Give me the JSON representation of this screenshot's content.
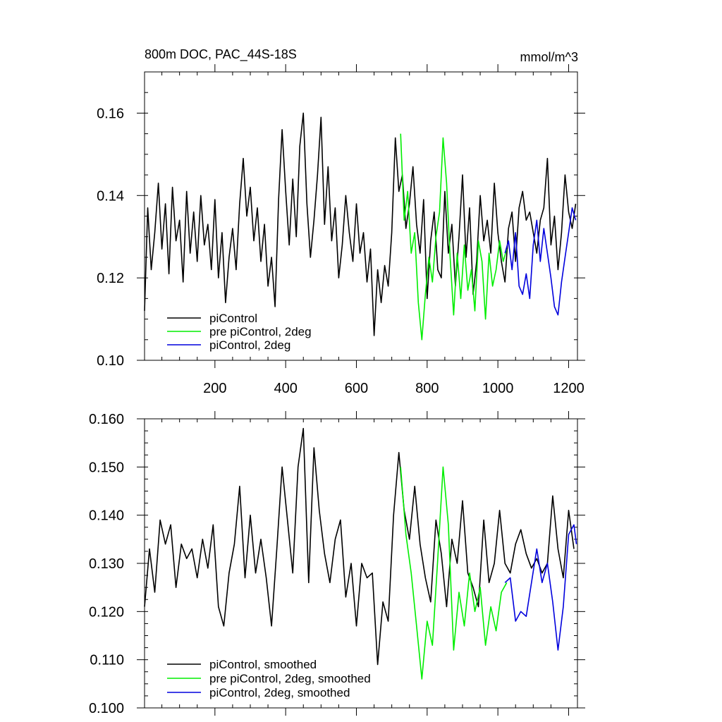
{
  "chart_data": [
    {
      "type": "line",
      "title": "800m DOC, PAC_44S-18S",
      "units_label": "mmol/m^3",
      "xlabel": "",
      "ylabel": "",
      "xlim": [
        1,
        1225
      ],
      "ylim": [
        0.1,
        0.17
      ],
      "x_ticks": [
        200,
        400,
        600,
        800,
        1000,
        1200
      ],
      "x_tick_labels": [
        "200",
        "400",
        "600",
        "800",
        "1000",
        "1200"
      ],
      "y_ticks": [
        0.1,
        0.12,
        0.14,
        0.16
      ],
      "y_tick_labels": [
        "0.10",
        "0.12",
        "0.14",
        "0.16"
      ],
      "legend_position": "bottom-left",
      "series": [
        {
          "name": "piControl",
          "color": "#000000",
          "x": [
            1,
            10,
            20,
            30,
            40,
            50,
            60,
            70,
            80,
            90,
            100,
            110,
            120,
            130,
            140,
            150,
            160,
            170,
            180,
            190,
            200,
            210,
            220,
            230,
            240,
            250,
            260,
            270,
            280,
            290,
            300,
            310,
            320,
            330,
            340,
            350,
            360,
            370,
            380,
            390,
            400,
            410,
            420,
            430,
            440,
            450,
            460,
            470,
            480,
            490,
            500,
            510,
            520,
            530,
            540,
            550,
            560,
            570,
            580,
            590,
            600,
            610,
            620,
            630,
            640,
            650,
            660,
            670,
            680,
            690,
            700,
            710,
            720,
            730,
            740,
            750,
            760,
            770,
            780,
            790,
            800,
            810,
            820,
            830,
            840,
            850,
            860,
            870,
            880,
            890,
            900,
            910,
            920,
            930,
            940,
            950,
            960,
            970,
            980,
            990,
            1000,
            1010,
            1020,
            1030,
            1040,
            1050,
            1060,
            1070,
            1080,
            1090,
            1100,
            1110,
            1120,
            1130,
            1140,
            1150,
            1160,
            1170,
            1180,
            1190,
            1200,
            1210,
            1220
          ],
          "values": [
            0.112,
            0.137,
            0.122,
            0.131,
            0.143,
            0.127,
            0.138,
            0.121,
            0.142,
            0.129,
            0.134,
            0.119,
            0.141,
            0.126,
            0.136,
            0.124,
            0.14,
            0.128,
            0.133,
            0.122,
            0.139,
            0.12,
            0.131,
            0.114,
            0.125,
            0.132,
            0.122,
            0.138,
            0.149,
            0.135,
            0.142,
            0.129,
            0.137,
            0.124,
            0.133,
            0.118,
            0.125,
            0.113,
            0.139,
            0.156,
            0.141,
            0.128,
            0.144,
            0.13,
            0.152,
            0.16,
            0.138,
            0.125,
            0.134,
            0.145,
            0.159,
            0.133,
            0.147,
            0.129,
            0.137,
            0.12,
            0.128,
            0.14,
            0.131,
            0.124,
            0.138,
            0.126,
            0.131,
            0.119,
            0.127,
            0.106,
            0.122,
            0.114,
            0.123,
            0.118,
            0.131,
            0.154,
            0.141,
            0.145,
            0.132,
            0.138,
            0.147,
            0.133,
            0.126,
            0.139,
            0.115,
            0.129,
            0.136,
            0.122,
            0.12,
            0.141,
            0.126,
            0.133,
            0.118,
            0.13,
            0.145,
            0.125,
            0.137,
            0.116,
            0.124,
            0.14,
            0.129,
            0.134,
            0.126,
            0.143,
            0.131,
            0.124,
            0.119,
            0.132,
            0.136,
            0.124,
            0.137,
            0.141,
            0.134,
            0.136,
            0.131,
            0.126,
            0.134,
            0.137,
            0.149,
            0.128,
            0.135,
            0.122,
            0.131,
            0.145,
            0.136,
            0.132,
            0.138
          ]
        },
        {
          "name": "pre piControl, 2deg",
          "color": "#00ee00",
          "x": [
            725,
            735,
            745,
            755,
            765,
            775,
            785,
            795,
            805,
            815,
            825,
            835,
            845,
            855,
            865,
            875,
            885,
            895,
            905,
            915,
            925,
            935,
            945,
            955,
            965,
            975,
            985,
            995,
            1005,
            1015,
            1025
          ],
          "values": [
            0.155,
            0.134,
            0.141,
            0.126,
            0.131,
            0.114,
            0.105,
            0.116,
            0.125,
            0.119,
            0.13,
            0.136,
            0.154,
            0.143,
            0.125,
            0.111,
            0.126,
            0.115,
            0.128,
            0.117,
            0.122,
            0.112,
            0.129,
            0.124,
            0.11,
            0.126,
            0.118,
            0.122,
            0.129,
            0.124,
            0.127
          ]
        },
        {
          "name": "piControl, 2deg",
          "color": "#0000dd",
          "x": [
            1020,
            1030,
            1040,
            1050,
            1060,
            1070,
            1080,
            1090,
            1100,
            1110,
            1120,
            1130,
            1140,
            1150,
            1160,
            1170,
            1180,
            1190,
            1200,
            1210,
            1220
          ],
          "values": [
            0.126,
            0.129,
            0.122,
            0.131,
            0.118,
            0.116,
            0.121,
            0.115,
            0.128,
            0.134,
            0.124,
            0.132,
            0.126,
            0.12,
            0.113,
            0.111,
            0.119,
            0.125,
            0.131,
            0.137,
            0.134
          ]
        }
      ]
    },
    {
      "type": "line",
      "title": "",
      "xlabel": "",
      "ylabel": "",
      "xlim": [
        1,
        1225
      ],
      "ylim": [
        0.1,
        0.16
      ],
      "x_ticks": [
        200,
        400,
        600,
        800,
        1000,
        1200
      ],
      "y_ticks": [
        0.1,
        0.11,
        0.12,
        0.13,
        0.14,
        0.15,
        0.16
      ],
      "y_tick_labels": [
        "0.100",
        "0.110",
        "0.120",
        "0.130",
        "0.140",
        "0.150",
        "0.160"
      ],
      "legend_position": "bottom-left",
      "series": [
        {
          "name": "piControl, smoothed",
          "color": "#000000",
          "x": [
            1,
            15,
            30,
            45,
            60,
            75,
            90,
            105,
            120,
            135,
            150,
            165,
            180,
            195,
            210,
            225,
            240,
            255,
            270,
            285,
            300,
            315,
            330,
            345,
            360,
            375,
            390,
            405,
            420,
            435,
            450,
            465,
            480,
            495,
            510,
            525,
            540,
            555,
            570,
            585,
            600,
            615,
            630,
            645,
            660,
            675,
            690,
            705,
            720,
            735,
            750,
            765,
            780,
            795,
            810,
            825,
            840,
            855,
            870,
            885,
            900,
            915,
            930,
            945,
            960,
            975,
            990,
            1005,
            1020,
            1035,
            1050,
            1065,
            1080,
            1095,
            1110,
            1125,
            1140,
            1155,
            1170,
            1185,
            1200,
            1215
          ],
          "values": [
            0.121,
            0.133,
            0.124,
            0.139,
            0.134,
            0.138,
            0.125,
            0.134,
            0.131,
            0.133,
            0.127,
            0.135,
            0.129,
            0.138,
            0.121,
            0.117,
            0.128,
            0.134,
            0.146,
            0.127,
            0.14,
            0.128,
            0.135,
            0.127,
            0.117,
            0.133,
            0.15,
            0.139,
            0.128,
            0.15,
            0.158,
            0.126,
            0.154,
            0.141,
            0.132,
            0.126,
            0.135,
            0.139,
            0.123,
            0.13,
            0.117,
            0.13,
            0.127,
            0.128,
            0.109,
            0.122,
            0.118,
            0.14,
            0.153,
            0.141,
            0.135,
            0.146,
            0.134,
            0.127,
            0.122,
            0.139,
            0.132,
            0.121,
            0.135,
            0.13,
            0.143,
            0.128,
            0.125,
            0.121,
            0.139,
            0.126,
            0.13,
            0.141,
            0.13,
            0.128,
            0.134,
            0.137,
            0.132,
            0.129,
            0.131,
            0.128,
            0.13,
            0.144,
            0.133,
            0.127,
            0.141,
            0.133
          ]
        },
        {
          "name": "pre piControl, 2deg, smoothed",
          "color": "#00ee00",
          "x": [
            725,
            740,
            755,
            770,
            785,
            800,
            815,
            830,
            845,
            860,
            875,
            890,
            905,
            920,
            935,
            950,
            965,
            980,
            995,
            1010,
            1025
          ],
          "values": [
            0.15,
            0.136,
            0.128,
            0.117,
            0.106,
            0.118,
            0.113,
            0.131,
            0.15,
            0.138,
            0.112,
            0.124,
            0.117,
            0.128,
            0.12,
            0.125,
            0.113,
            0.121,
            0.116,
            0.124,
            0.126
          ]
        },
        {
          "name": "piControl, 2deg, smoothed",
          "color": "#0000dd",
          "x": [
            1020,
            1035,
            1050,
            1065,
            1080,
            1095,
            1110,
            1125,
            1140,
            1155,
            1170,
            1185,
            1200,
            1215,
            1222
          ],
          "values": [
            0.126,
            0.127,
            0.118,
            0.12,
            0.119,
            0.126,
            0.133,
            0.126,
            0.13,
            0.122,
            0.112,
            0.121,
            0.136,
            0.138,
            0.134
          ]
        }
      ]
    }
  ]
}
